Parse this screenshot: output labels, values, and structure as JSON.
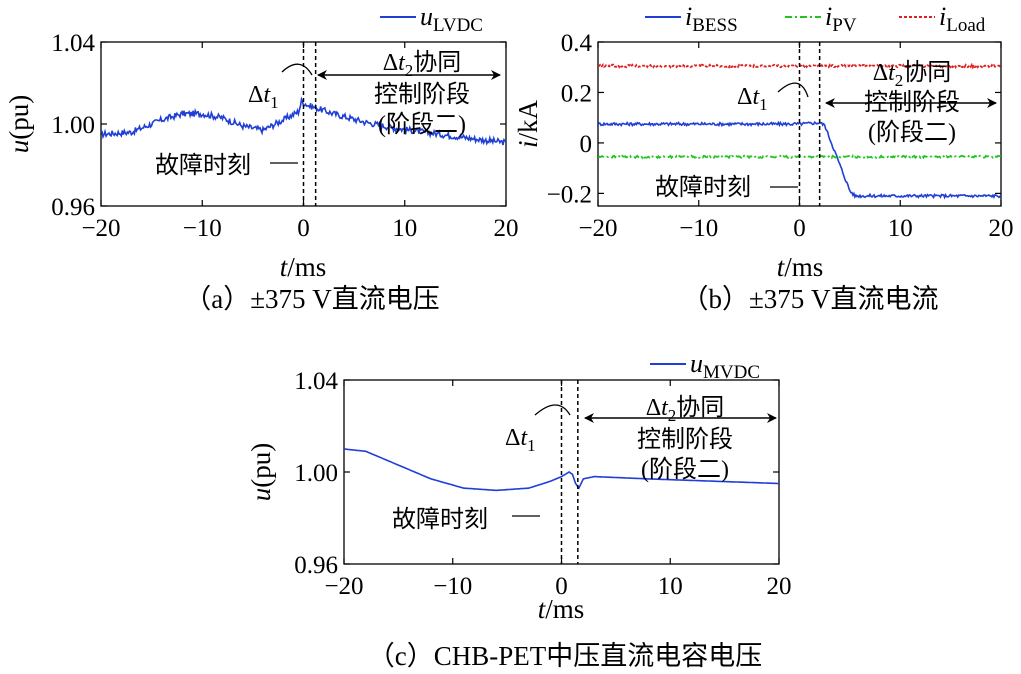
{
  "chart_data": [
    {
      "id": "a",
      "type": "line",
      "caption": "（a）±375 V直流电压",
      "ylabel": {
        "italic": "u",
        "rest": "(pu)"
      },
      "xlabel": {
        "italic": "t",
        "rest": "/ms"
      },
      "xlim": [
        -20,
        20
      ],
      "ylim": [
        0.96,
        1.04
      ],
      "xticks": [
        -20,
        -10,
        0,
        10,
        20
      ],
      "yticks": [
        0.96,
        1.0,
        1.04
      ],
      "ytick_labels": [
        "0.96",
        "1.00",
        "1.04"
      ],
      "xtick_labels": [
        "−20",
        "−10",
        "0",
        "10",
        "20"
      ],
      "series": [
        {
          "name_main": "u",
          "name_sub": "LVDC",
          "color": "#1f3fd6",
          "style": "solid",
          "noise": 0.0015,
          "points": [
            [
              -20,
              0.995
            ],
            [
              -17,
              0.996
            ],
            [
              -14,
              1.002
            ],
            [
              -12,
              1.005
            ],
            [
              -10,
              1.005
            ],
            [
              -8,
              1.003
            ],
            [
              -6,
              0.999
            ],
            [
              -4,
              0.997
            ],
            [
              -2,
              1.002
            ],
            [
              -0.5,
              1.006
            ],
            [
              -0.2,
              1.011
            ],
            [
              0.5,
              1.009
            ],
            [
              3,
              1.005
            ],
            [
              6,
              1.001
            ],
            [
              9,
              0.998
            ],
            [
              12,
              0.996
            ],
            [
              15,
              0.994
            ],
            [
              18,
              0.992
            ],
            [
              20,
              0.991
            ]
          ]
        }
      ],
      "vlines": [
        0,
        1.2
      ],
      "annotations": {
        "fault_label": "故障时刻",
        "dt1_main": "Δ",
        "dt1_var": "t",
        "dt1_sub": "1",
        "dt2_main": "Δ",
        "dt2_var": "t",
        "dt2_sub": "2",
        "dt2_tail": "协同",
        "stage_line2": "控制阶段",
        "stage_line3": "(阶段二)"
      }
    },
    {
      "id": "b",
      "type": "line",
      "caption": "（b）±375 V直流电流",
      "ylabel": {
        "italic": "i",
        "rest": "/kA"
      },
      "xlabel": {
        "italic": "t",
        "rest": "/ms"
      },
      "xlim": [
        -20,
        20
      ],
      "ylim": [
        -0.25,
        0.4
      ],
      "xticks": [
        -20,
        -10,
        0,
        10,
        20
      ],
      "yticks": [
        -0.2,
        0,
        0.2,
        0.4
      ],
      "ytick_labels": [
        "−0.2",
        "0",
        "0.2",
        "0.4"
      ],
      "xtick_labels": [
        "−20",
        "−10",
        "0",
        "10",
        "20"
      ],
      "series": [
        {
          "name_main": "i",
          "name_sub": "BESS",
          "color": "#1f3fd6",
          "style": "solid",
          "noise": 0.006,
          "points": [
            [
              -20,
              0.075
            ],
            [
              -10,
              0.075
            ],
            [
              0,
              0.075
            ],
            [
              2,
              0.08
            ],
            [
              2.5,
              0.07
            ],
            [
              5,
              -0.19
            ],
            [
              5.5,
              -0.21
            ],
            [
              10,
              -0.21
            ],
            [
              20,
              -0.21
            ]
          ]
        },
        {
          "name_main": "i",
          "name_sub": "PV",
          "color": "#22c322",
          "style": "dashdot",
          "noise": 0.004,
          "points": [
            [
              -20,
              -0.055
            ],
            [
              20,
              -0.055
            ]
          ]
        },
        {
          "name_main": "i",
          "name_sub": "Load",
          "color": "#e02020",
          "style": "dotted",
          "noise": 0.005,
          "points": [
            [
              -20,
              0.305
            ],
            [
              20,
              0.305
            ]
          ]
        }
      ],
      "vlines": [
        0,
        2
      ],
      "annotations": {
        "fault_label": "故障时刻",
        "dt1_main": "Δ",
        "dt1_var": "t",
        "dt1_sub": "1",
        "dt2_main": "Δ",
        "dt2_var": "t",
        "dt2_sub": "2",
        "dt2_tail": "协同",
        "stage_line2": "控制阶段",
        "stage_line3": "(阶段二)"
      }
    },
    {
      "id": "c",
      "type": "line",
      "caption": "（c）CHB-PET中压直流电容电压",
      "ylabel": {
        "italic": "u",
        "rest": "(pu)"
      },
      "xlabel": {
        "italic": "t",
        "rest": "/ms"
      },
      "xlim": [
        -20,
        20
      ],
      "ylim": [
        0.96,
        1.04
      ],
      "xticks": [
        -20,
        -10,
        0,
        10,
        20
      ],
      "yticks": [
        0.96,
        1.0,
        1.04
      ],
      "ytick_labels": [
        "0.96",
        "1.00",
        "1.04"
      ],
      "xtick_labels": [
        "−20",
        "−10",
        "0",
        "10",
        "20"
      ],
      "series": [
        {
          "name_main": "u",
          "name_sub": "MVDC",
          "color": "#1f3fd6",
          "style": "solid",
          "noise": 0,
          "points": [
            [
              -20,
              1.01
            ],
            [
              -18,
              1.009
            ],
            [
              -15,
              1.003
            ],
            [
              -12,
              0.997
            ],
            [
              -9,
              0.993
            ],
            [
              -6,
              0.992
            ],
            [
              -3,
              0.993
            ],
            [
              -1,
              0.996
            ],
            [
              0,
              0.998
            ],
            [
              0.7,
              1.0
            ],
            [
              1.0,
              0.999
            ],
            [
              1.3,
              0.995
            ],
            [
              1.6,
              0.993
            ],
            [
              2.0,
              0.997
            ],
            [
              3,
              0.998
            ],
            [
              8,
              0.997
            ],
            [
              14,
              0.996
            ],
            [
              20,
              0.995
            ]
          ]
        }
      ],
      "vlines": [
        0,
        1.5
      ],
      "annotations": {
        "fault_label": "故障时刻",
        "dt1_main": "Δ",
        "dt1_var": "t",
        "dt1_sub": "1",
        "dt2_main": "Δ",
        "dt2_var": "t",
        "dt2_sub": "2",
        "dt2_tail": "协同",
        "stage_line2": "控制阶段",
        "stage_line3": "(阶段二)"
      }
    }
  ]
}
